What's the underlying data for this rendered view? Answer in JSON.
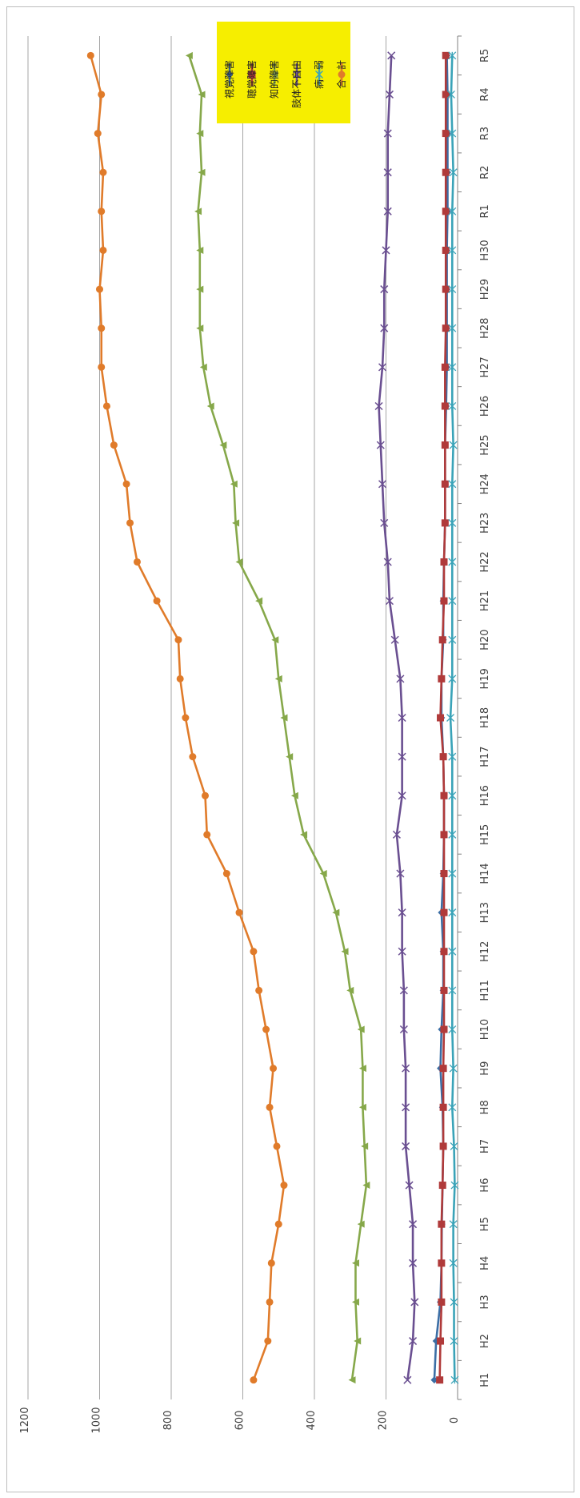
{
  "chart_data": {
    "type": "line",
    "title": "",
    "xlabel": "",
    "ylabel": "",
    "ylim": [
      0,
      1200
    ],
    "yticks": [
      "0",
      "200",
      "400",
      "600",
      "800",
      "1000",
      "1200"
    ],
    "grid": true,
    "legend_position": "top-right",
    "categories": [
      "H1",
      "H2",
      "H3",
      "H4",
      "H5",
      "H6",
      "H7",
      "H8",
      "H9",
      "H10",
      "H11",
      "H12",
      "H13",
      "H14",
      "H15",
      "H16",
      "H17",
      "H18",
      "H19",
      "H20",
      "H21",
      "H22",
      "H23",
      "H24",
      "H25",
      "H26",
      "H27",
      "H28",
      "H29",
      "H30",
      "R1",
      "R2",
      "R3",
      "R4",
      "R5"
    ],
    "series": [
      {
        "name": "視覚障害",
        "color": "#3b6ea5",
        "marker": "diamond",
        "values": [
          65,
          60,
          48,
          45,
          44,
          42,
          40,
          42,
          48,
          45,
          40,
          40,
          45,
          40,
          38,
          38,
          40,
          45,
          45,
          40,
          40,
          38,
          35,
          35,
          35,
          32,
          30,
          30,
          30,
          30,
          28,
          28,
          28,
          28,
          30
        ]
      },
      {
        "name": "聴覚障害",
        "color": "#b03a3a",
        "marker": "square",
        "values": [
          50,
          48,
          45,
          45,
          45,
          42,
          40,
          40,
          40,
          38,
          38,
          38,
          38,
          38,
          38,
          38,
          40,
          48,
          45,
          42,
          38,
          38,
          35,
          35,
          35,
          35,
          35,
          33,
          33,
          33,
          33,
          33,
          33,
          33,
          33
        ]
      },
      {
        "name": "知的障害",
        "color": "#86a84a",
        "marker": "triangle",
        "values": [
          295,
          280,
          285,
          285,
          270,
          255,
          260,
          265,
          265,
          270,
          300,
          315,
          340,
          375,
          430,
          455,
          470,
          485,
          500,
          510,
          555,
          610,
          620,
          625,
          655,
          690,
          710,
          720,
          720,
          720,
          725,
          715,
          720,
          715,
          750
        ]
      },
      {
        "name": "肢体不自由",
        "color": "#6a4f91",
        "marker": "x",
        "values": [
          140,
          125,
          120,
          125,
          125,
          135,
          145,
          145,
          145,
          150,
          150,
          155,
          155,
          160,
          170,
          155,
          155,
          155,
          160,
          175,
          190,
          195,
          205,
          210,
          215,
          220,
          210,
          205,
          205,
          200,
          195,
          195,
          195,
          190,
          185
        ]
      },
      {
        "name": "病　弱",
        "color": "#3aa3b8",
        "marker": "star",
        "values": [
          8,
          10,
          10,
          12,
          12,
          8,
          10,
          15,
          12,
          15,
          15,
          15,
          15,
          15,
          15,
          15,
          15,
          20,
          15,
          15,
          15,
          15,
          15,
          15,
          12,
          15,
          15,
          15,
          15,
          15,
          15,
          12,
          15,
          18,
          15
        ]
      },
      {
        "name": "合　計",
        "color": "#e07b2a",
        "marker": "circle",
        "values": [
          570,
          530,
          525,
          520,
          500,
          485,
          505,
          525,
          515,
          535,
          555,
          570,
          610,
          645,
          700,
          705,
          740,
          760,
          775,
          780,
          840,
          895,
          915,
          925,
          960,
          980,
          995,
          995,
          1000,
          990,
          995,
          990,
          1005,
          995,
          1025
        ]
      }
    ]
  }
}
